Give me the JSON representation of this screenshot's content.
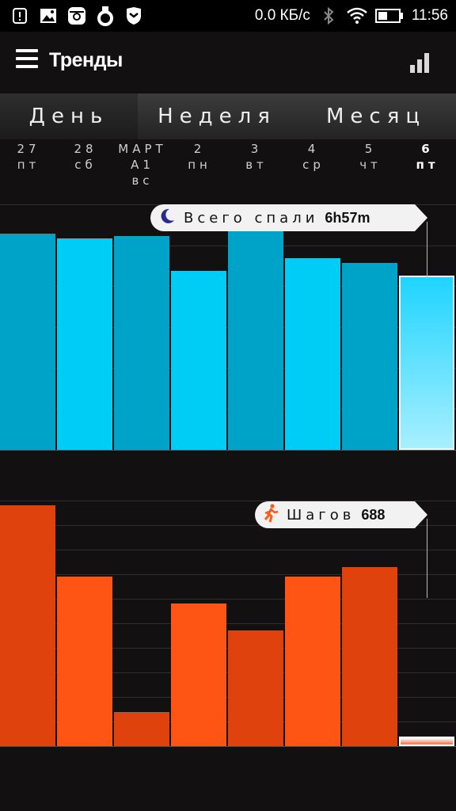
{
  "status_bar": {
    "speed": "0.0 КБ/с",
    "time": "11:56",
    "icons": [
      "alert-icon",
      "image-icon",
      "instagram-icon",
      "ring-icon",
      "shield-icon",
      "bluetooth-icon",
      "wifi-icon",
      "battery-icon"
    ]
  },
  "header": {
    "title": "Тренды",
    "menu_icon": "menu-icon",
    "stats_icon": "bar-chart-icon"
  },
  "tabs": [
    {
      "label": "День",
      "active": true
    },
    {
      "label": "Неделя",
      "active": false
    },
    {
      "label": "Месяц",
      "active": false
    }
  ],
  "days": [
    {
      "top": "27",
      "bottom": "пт",
      "extra": ""
    },
    {
      "top": "28",
      "bottom": "сб",
      "extra": ""
    },
    {
      "top": "МАРТ",
      "bottom": "А1",
      "extra": "вс"
    },
    {
      "top": "2",
      "bottom": "пн",
      "extra": ""
    },
    {
      "top": "3",
      "bottom": "вт",
      "extra": ""
    },
    {
      "top": "4",
      "bottom": "ср",
      "extra": ""
    },
    {
      "top": "5",
      "bottom": "чт",
      "extra": ""
    },
    {
      "top": "6",
      "bottom": "пт",
      "extra": "",
      "selected": true
    }
  ],
  "sleep": {
    "label": "Всего спали",
    "value": "6h57m",
    "icon": "moon-icon"
  },
  "steps": {
    "label": "Шагов",
    "value": "688",
    "icon": "runner-icon"
  },
  "colors": {
    "sleep_dark": "#00a3c8",
    "sleep_light": "#00cdf5",
    "sleep_selected_top": "#1fd4ff",
    "sleep_selected_bottom": "#a8efff",
    "steps_dark": "#e0420e",
    "steps_light": "#ff5514",
    "steps_selected": "#ff6a3a"
  },
  "chart_data": [
    {
      "type": "bar",
      "title": "",
      "categories": [
        "27 пт",
        "28 сб",
        "1 вс",
        "2 пн",
        "3 вт",
        "4 ср",
        "5 чт",
        "6 пт"
      ],
      "series": [
        {
          "values": [
            0.88,
            0.86,
            0.87,
            0.73,
            0.91,
            0.78,
            0.76,
            0.71
          ]
        }
      ],
      "ylim": [
        0,
        1
      ],
      "grid": true
    },
    {
      "type": "bar",
      "title": "",
      "categories": [
        "27 пт",
        "28 сб",
        "1 вс",
        "2 пн",
        "3 вт",
        "4 ср",
        "5 чт",
        "6 пт"
      ],
      "series": [
        {
          "values": [
            0.98,
            0.69,
            0.14,
            0.58,
            0.47,
            0.69,
            0.73,
            0.04
          ]
        }
      ],
      "ylim": [
        0,
        1
      ],
      "grid": true
    }
  ]
}
